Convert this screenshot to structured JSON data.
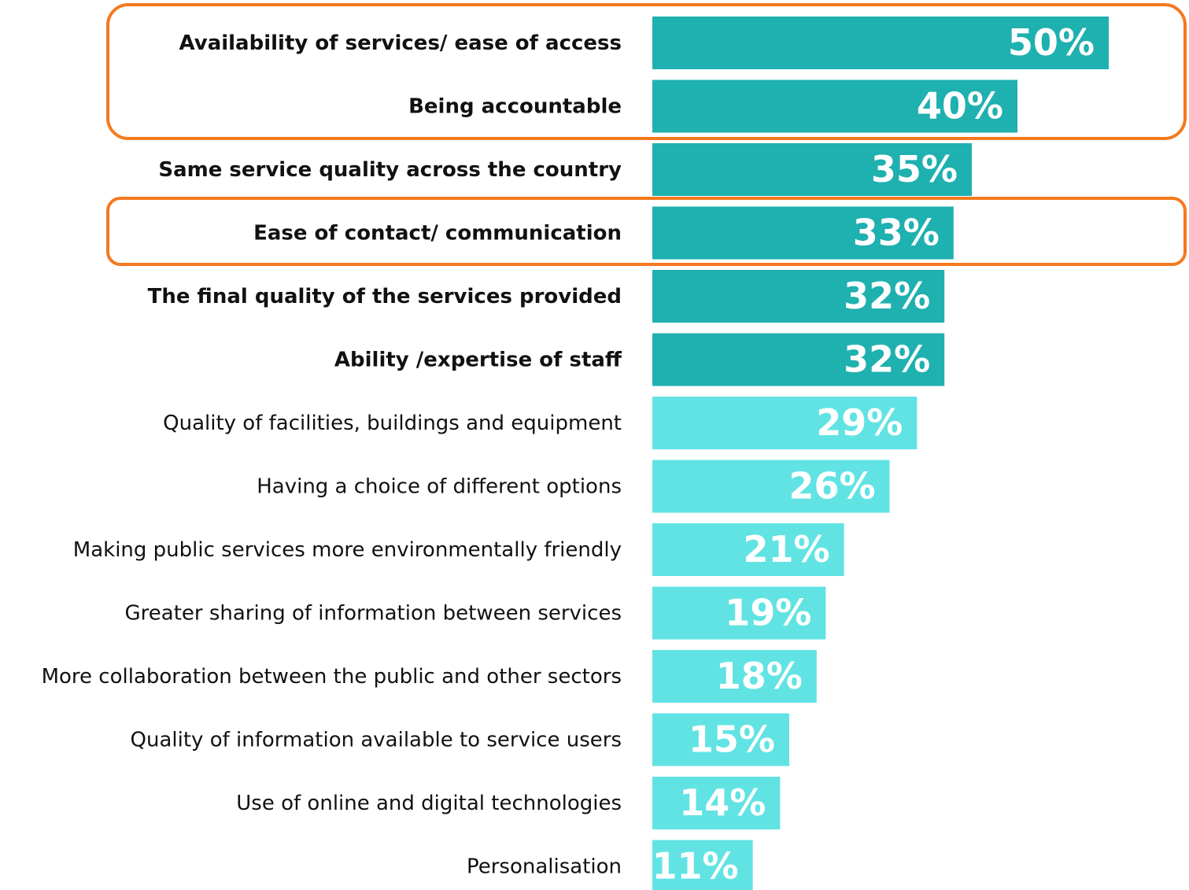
{
  "chart_data": {
    "type": "bar",
    "orientation": "horizontal",
    "categories": [
      "Availability of services/ ease of access",
      "Being accountable",
      "Same service quality across the country",
      "Ease of contact/ communication",
      "The final quality of the services provided",
      "Ability /expertise of staff",
      "Quality of facilities, buildings and equipment",
      "Having a choice of different options",
      "Making public services more environmentally friendly",
      "Greater sharing of information between services",
      "More collaboration between the public and other sectors",
      "Quality of information available to service users",
      "Use of online and digital technologies",
      "Personalisation"
    ],
    "values": [
      50,
      40,
      35,
      33,
      32,
      32,
      29,
      26,
      21,
      19,
      18,
      15,
      14,
      11
    ],
    "value_labels": [
      "50%",
      "40%",
      "35%",
      "33%",
      "32%",
      "32%",
      "29%",
      "26%",
      "21%",
      "19%",
      "18%",
      "15%",
      "14%",
      "11%"
    ],
    "colors": [
      "#1fb0b0",
      "#1fb0b0",
      "#1fb0b0",
      "#1fb0b0",
      "#1fb0b0",
      "#1fb0b0",
      "#62e3e3",
      "#62e3e3",
      "#62e3e3",
      "#62e3e3",
      "#62e3e3",
      "#62e3e3",
      "#62e3e3",
      "#62e3e3"
    ]
  }
}
